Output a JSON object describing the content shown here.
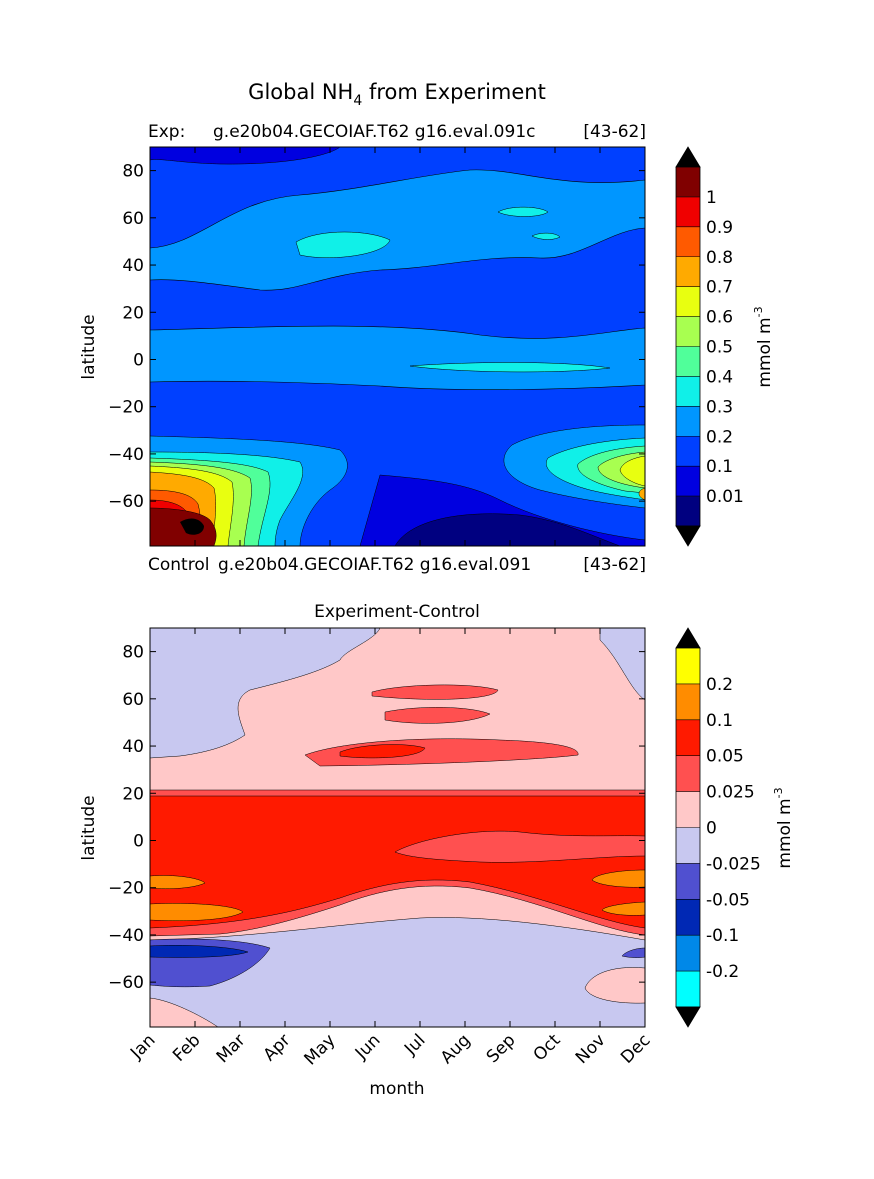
{
  "figure": {
    "title_main": "Global NH",
    "title_sub": "4",
    "title_tail": " from Experiment"
  },
  "chart_data": [
    {
      "type": "heatmap",
      "panel": "experiment",
      "subtitle_left": "Exp:",
      "subtitle_center": "g.e20b04.GECOIAF.T62 g16.eval.091c",
      "subtitle_right": "[43-62]",
      "xlabel": "",
      "ylabel": "latitude",
      "ylim": [
        -79,
        90
      ],
      "yticks": [
        80,
        60,
        40,
        20,
        0,
        -20,
        -40,
        -60
      ],
      "colorbar_label": "mmol m",
      "colorbar_exp": "-3",
      "levels": [
        "1",
        "0.9",
        "0.8",
        "0.7",
        "0.6",
        "0.5",
        "0.4",
        "0.3",
        "0.2",
        "0.1",
        "0.01"
      ],
      "colors": [
        "#000000",
        "#800000",
        "#f00000",
        "#ff5a00",
        "#ffaa00",
        "#e8ff10",
        "#a8ff50",
        "#50ff9a",
        "#10f0e8",
        "#0096ff",
        "#0040ff",
        "#0000e0",
        "#000080",
        "#000000"
      ],
      "background_color": "#0040ff"
    },
    {
      "type": "heatmap",
      "panel": "difference",
      "subtitle_left": "Control",
      "subtitle_center": "g.e20b04.GECOIAF.T62 g16.eval.091",
      "subtitle_right": "[43-62]",
      "title": "Experiment-Control",
      "xlabel": "month",
      "ylabel": "latitude",
      "ylim": [
        -79,
        90
      ],
      "yticks": [
        80,
        60,
        40,
        20,
        0,
        -20,
        -40,
        -60
      ],
      "categories": [
        "Jan",
        "Feb",
        "Mar",
        "Apr",
        "May",
        "Jun",
        "Jul",
        "Aug",
        "Sep",
        "Oct",
        "Nov",
        "Dec"
      ],
      "colorbar_label": "mmol m",
      "colorbar_exp": "-3",
      "levels": [
        "0.2",
        "0.1",
        "0.05",
        "0.025",
        "0",
        "-0.025",
        "-0.05",
        "-0.1",
        "-0.2"
      ],
      "colors": [
        "#000000",
        "#ffff00",
        "#ff8c00",
        "#ff1a00",
        "#ff5050",
        "#ffc8c8",
        "#c8c8f0",
        "#5050d0",
        "#0028b4",
        "#0088e8",
        "#00ffff",
        "#000000"
      ],
      "background_color": "#ff1a00"
    }
  ]
}
